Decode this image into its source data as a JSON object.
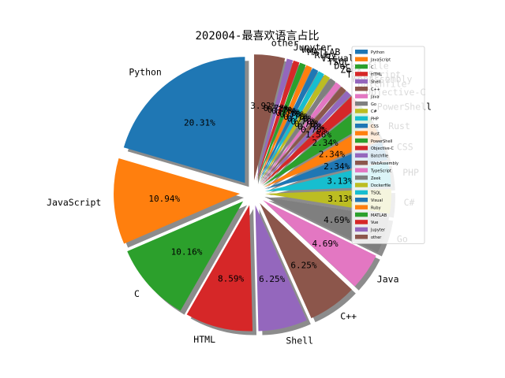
{
  "chart_data": {
    "type": "pie",
    "title": "202004-最喜欢语言占比",
    "categories": [
      "Python",
      "JavaScript",
      "C",
      "HTML",
      "Shell",
      "C++",
      "Java",
      "Go",
      "C#",
      "PHP",
      "CSS",
      "Rust",
      "PowerShell",
      "Objective-C",
      "Batchfile",
      "WebAssembly",
      "TypeScript",
      "Zeek",
      "Dockerfile",
      "TSQL",
      "Visual",
      "Ruby",
      "MATLAB",
      "Vue",
      "Jupyter",
      "other"
    ],
    "values": [
      20.31,
      10.94,
      10.16,
      8.59,
      6.25,
      6.25,
      4.69,
      4.69,
      3.13,
      3.13,
      2.34,
      2.34,
      2.34,
      1.56,
      0.78,
      0.78,
      0.78,
      0.78,
      0.78,
      0.78,
      0.78,
      0.78,
      0.78,
      0.78,
      0.78,
      3.92
    ],
    "percent_labels": [
      "20.31%",
      "10.94%",
      "10.16%",
      "8.59%",
      "6.25%",
      "6.25%",
      "4.69%",
      "4.69%",
      "3.13%",
      "3.13%",
      "2.34%",
      "2.34%",
      "2.34%",
      "1.56%",
      "0.78%",
      "0.78%",
      "0.78%",
      "0.78%",
      "0.78%",
      "0.78%",
      "0.78%",
      "0.78%",
      "0.78%",
      "0.78%",
      "0.78%",
      "3.92%"
    ],
    "colors": [
      "#1f77b4",
      "#ff7f0e",
      "#2ca02c",
      "#d62728",
      "#9467bd",
      "#8c564b",
      "#e377c2",
      "#7f7f7f",
      "#bcbd22",
      "#17becf",
      "#1f77b4",
      "#ff7f0e",
      "#2ca02c",
      "#d62728",
      "#9467bd",
      "#8c564b",
      "#e377c2",
      "#7f7f7f",
      "#bcbd22",
      "#17becf",
      "#1f77b4",
      "#ff7f0e",
      "#2ca02c",
      "#d62728",
      "#9467bd",
      "#8c564b"
    ],
    "start_angle_deg": 90,
    "direction": "counterclockwise",
    "shadow": true,
    "legend": "top-right"
  }
}
